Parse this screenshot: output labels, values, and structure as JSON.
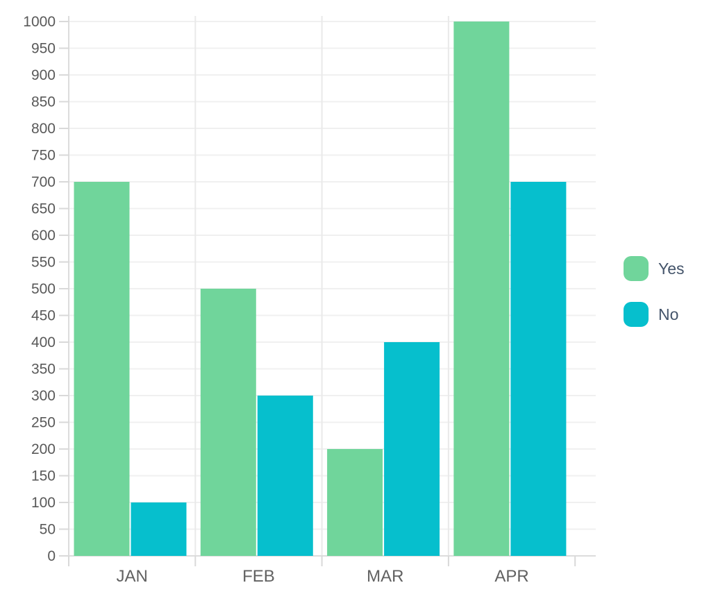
{
  "chart_data": {
    "type": "bar",
    "title": "",
    "xlabel": "",
    "ylabel": "",
    "categories": [
      "JAN",
      "FEB",
      "MAR",
      "APR"
    ],
    "series": [
      {
        "name": "Yes",
        "color": "#70D59B",
        "values": [
          700,
          500,
          200,
          1000
        ]
      },
      {
        "name": "No",
        "color": "#06BFCD",
        "values": [
          100,
          300,
          400,
          700
        ]
      }
    ],
    "ylim": [
      0,
      1000
    ],
    "ytick_step": 50,
    "ytick_labels": [
      "0",
      "50",
      "100",
      "150",
      "200",
      "250",
      "300",
      "350",
      "400",
      "450",
      "500",
      "550",
      "600",
      "650",
      "700",
      "750",
      "800",
      "850",
      "900",
      "950",
      "1000"
    ],
    "grid": true,
    "legend_position": "right",
    "colors": {
      "grid_horizontal": "#F0F0F0",
      "grid_vertical": "#E9E9E9",
      "axis_line": "#DCDCDC",
      "tick_mark": "#D9D9D9",
      "ytick_text": "#595959",
      "xtick_text": "#616161",
      "legend_text": "#44546A",
      "background": "#FFFFFF"
    }
  }
}
